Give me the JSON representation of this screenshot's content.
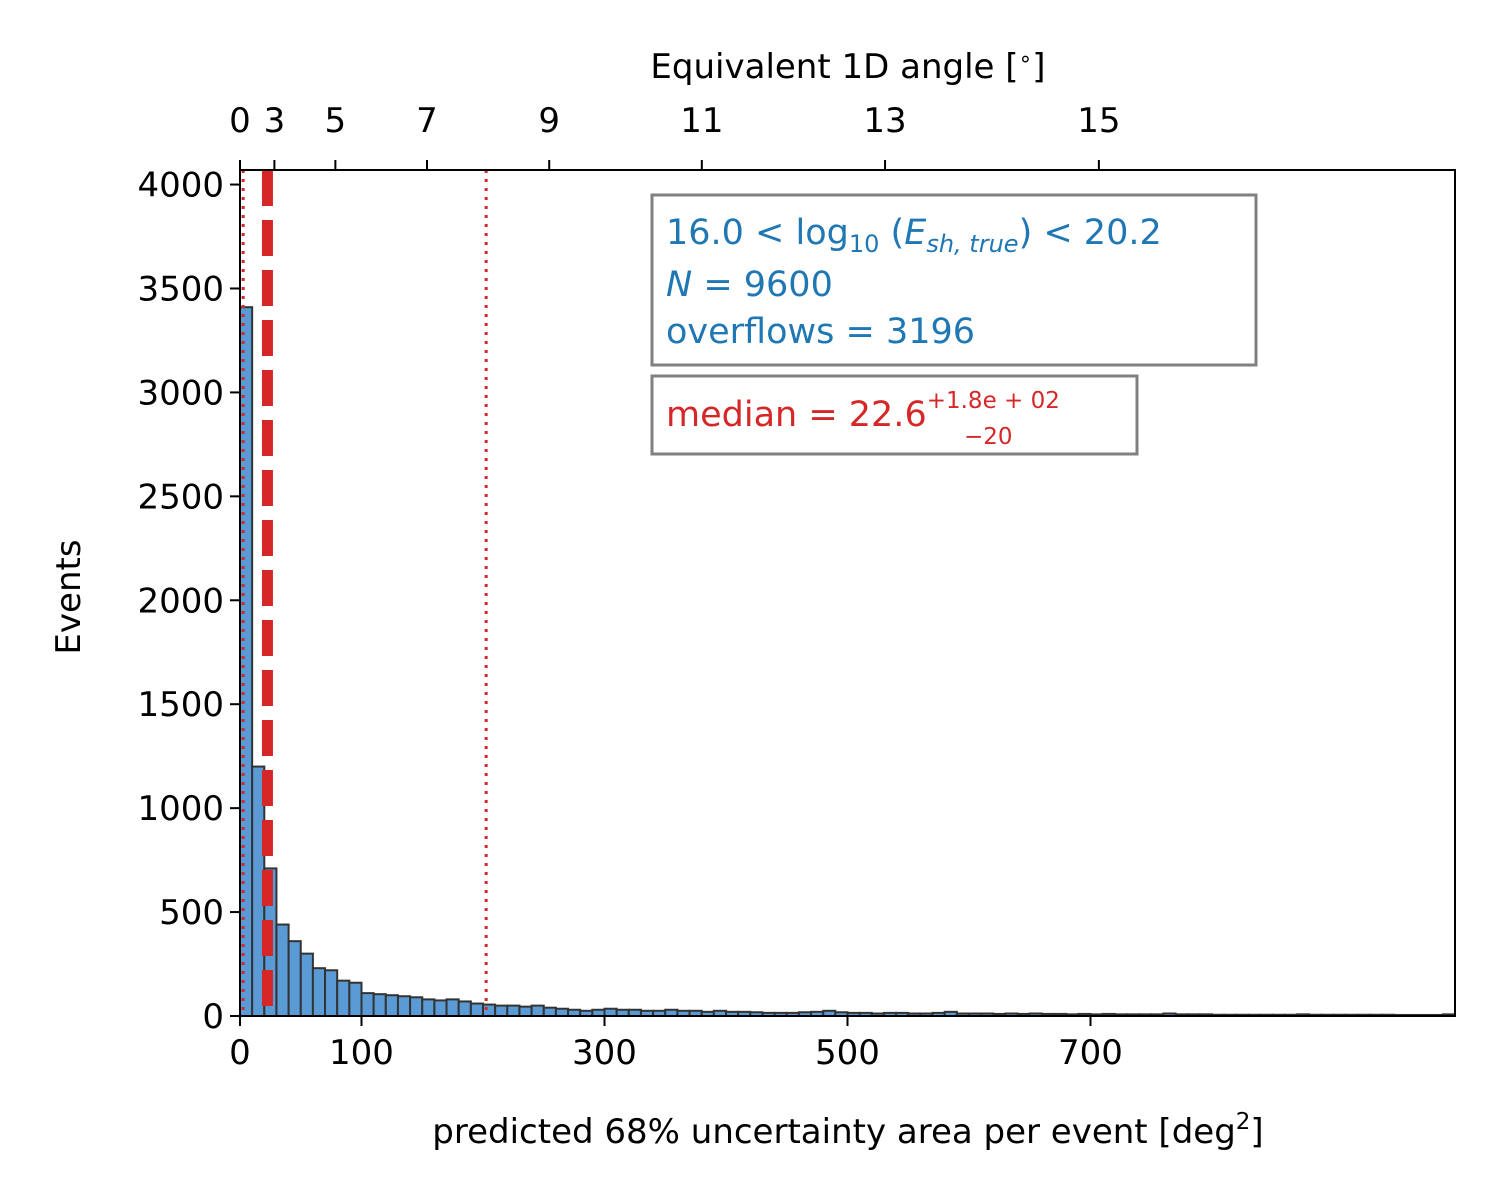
{
  "chart_data": {
    "type": "bar",
    "xlabel": "predicted 68% uncertainty area per event [deg",
    "xlabel_sup": "2",
    "xlabel_end": "]",
    "ylabel": "Events",
    "top_axis_label": "Equivalent 1D angle [",
    "top_axis_label_sup": "∘",
    "top_axis_label_end": "]",
    "xlim": [
      0,
      1000
    ],
    "ylim": [
      0,
      4070
    ],
    "x_ticks": [
      0,
      100,
      300,
      500,
      700
    ],
    "y_ticks": [
      0,
      500,
      1000,
      1500,
      2000,
      2500,
      3000,
      3500,
      4000
    ],
    "top_ticks": [
      {
        "label": "0",
        "area": 0
      },
      {
        "label": "3",
        "area": 28.3
      },
      {
        "label": "5",
        "area": 78.5
      },
      {
        "label": "7",
        "area": 153.9
      },
      {
        "label": "9",
        "area": 254.5
      },
      {
        "label": "11",
        "area": 380.1
      },
      {
        "label": "13",
        "area": 530.9
      },
      {
        "label": "15",
        "area": 706.9
      }
    ],
    "bin_width": 10,
    "bar_values": [
      3410,
      1200,
      710,
      440,
      360,
      300,
      230,
      220,
      170,
      160,
      110,
      105,
      100,
      95,
      90,
      80,
      75,
      80,
      70,
      60,
      55,
      50,
      50,
      45,
      50,
      40,
      35,
      30,
      25,
      30,
      35,
      30,
      30,
      25,
      25,
      30,
      25,
      25,
      20,
      25,
      20,
      20,
      18,
      15,
      15,
      15,
      18,
      20,
      25,
      18,
      15,
      15,
      12,
      15,
      15,
      12,
      12,
      15,
      20,
      12,
      12,
      12,
      10,
      12,
      10,
      12,
      10,
      10,
      8,
      10,
      8,
      10,
      8,
      8,
      8,
      8,
      12,
      8,
      8,
      8,
      6,
      6,
      6,
      6,
      6,
      6,
      6,
      8,
      6,
      6,
      6,
      6,
      6,
      6,
      6,
      5,
      5,
      5,
      5,
      8
    ],
    "bar_color": "#5b9bd5",
    "bar_edge_color": "#333333",
    "median": 22.6,
    "median_lower": 2.6,
    "median_upper": 202.6,
    "line_color": "#d62728",
    "info_box": {
      "line1_prefix": "16.0 < log",
      "line1_sub": "10",
      "line1_mid": " (",
      "line1_var": "E",
      "line1_var_sub": "sh, true",
      "line1_suffix": ") < 20.2",
      "line2_var": "N",
      "line2_value": " = 9600",
      "line3": "overflows = 3196",
      "text_color": "#1f77b4"
    },
    "median_box": {
      "prefix": "median = 22.6",
      "sup": "+1.8e + 02",
      "sub": "−20",
      "text_color": "#d62728"
    }
  }
}
